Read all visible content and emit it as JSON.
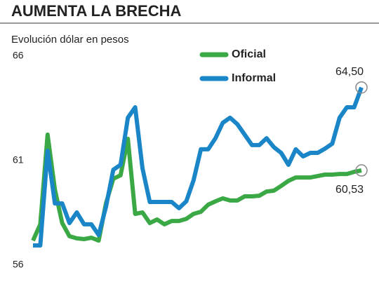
{
  "chart_data": {
    "type": "line",
    "title": "AUMENTA LA BRECHA",
    "subtitle": "Evolución dólar en pesos",
    "ylim": [
      56,
      66
    ],
    "yticks": [
      56,
      61,
      66
    ],
    "legend": "top-right",
    "series": [
      {
        "name": "Oficial",
        "color": "#3aa845",
        "values": [
          57.17,
          57.95,
          62.24,
          59.62,
          58.01,
          57.38,
          57.28,
          57.24,
          57.31,
          57.17,
          58.95,
          60.13,
          60.3,
          62.04,
          58.45,
          58.52,
          58.01,
          58.18,
          57.95,
          58.11,
          58.11,
          58.21,
          58.45,
          58.55,
          58.89,
          59.05,
          59.19,
          59.09,
          59.09,
          59.29,
          59.29,
          59.32,
          59.52,
          59.56,
          59.79,
          60.03,
          60.19,
          60.19,
          60.19,
          60.26,
          60.33,
          60.33,
          60.36,
          60.36,
          60.46,
          60.53
        ],
        "value_labels": [
          null,
          null,
          null,
          null,
          null,
          null,
          null,
          null,
          null,
          null,
          null,
          null,
          null,
          null,
          null,
          null,
          null,
          null,
          null,
          null,
          null,
          null,
          null,
          null,
          null,
          null,
          null,
          null,
          null,
          null,
          null,
          null,
          null,
          null,
          null,
          null,
          null,
          null,
          null,
          null,
          null,
          null,
          null,
          null,
          null,
          "60,53"
        ]
      },
      {
        "name": "Informal",
        "color": "#1a86c8",
        "values": [
          56.94,
          56.94,
          61.47,
          58.95,
          58.95,
          58.01,
          58.52,
          57.95,
          57.95,
          57.44,
          58.79,
          60.56,
          60.8,
          63.05,
          63.55,
          60.63,
          59.02,
          59.02,
          59.02,
          59.02,
          58.72,
          59.05,
          60.06,
          61.54,
          61.54,
          62.07,
          62.81,
          63.05,
          62.74,
          62.24,
          61.74,
          61.74,
          62.07,
          61.64,
          61.37,
          60.8,
          61.54,
          61.2,
          61.37,
          61.37,
          61.57,
          61.81,
          63.05,
          63.55,
          63.55,
          64.5
        ],
        "value_labels": [
          null,
          null,
          null,
          null,
          null,
          null,
          null,
          null,
          null,
          null,
          null,
          null,
          null,
          null,
          null,
          null,
          null,
          null,
          null,
          null,
          null,
          null,
          null,
          null,
          null,
          null,
          null,
          null,
          null,
          null,
          null,
          null,
          null,
          null,
          null,
          null,
          null,
          null,
          null,
          null,
          null,
          null,
          null,
          null,
          null,
          "64,50"
        ]
      }
    ]
  }
}
